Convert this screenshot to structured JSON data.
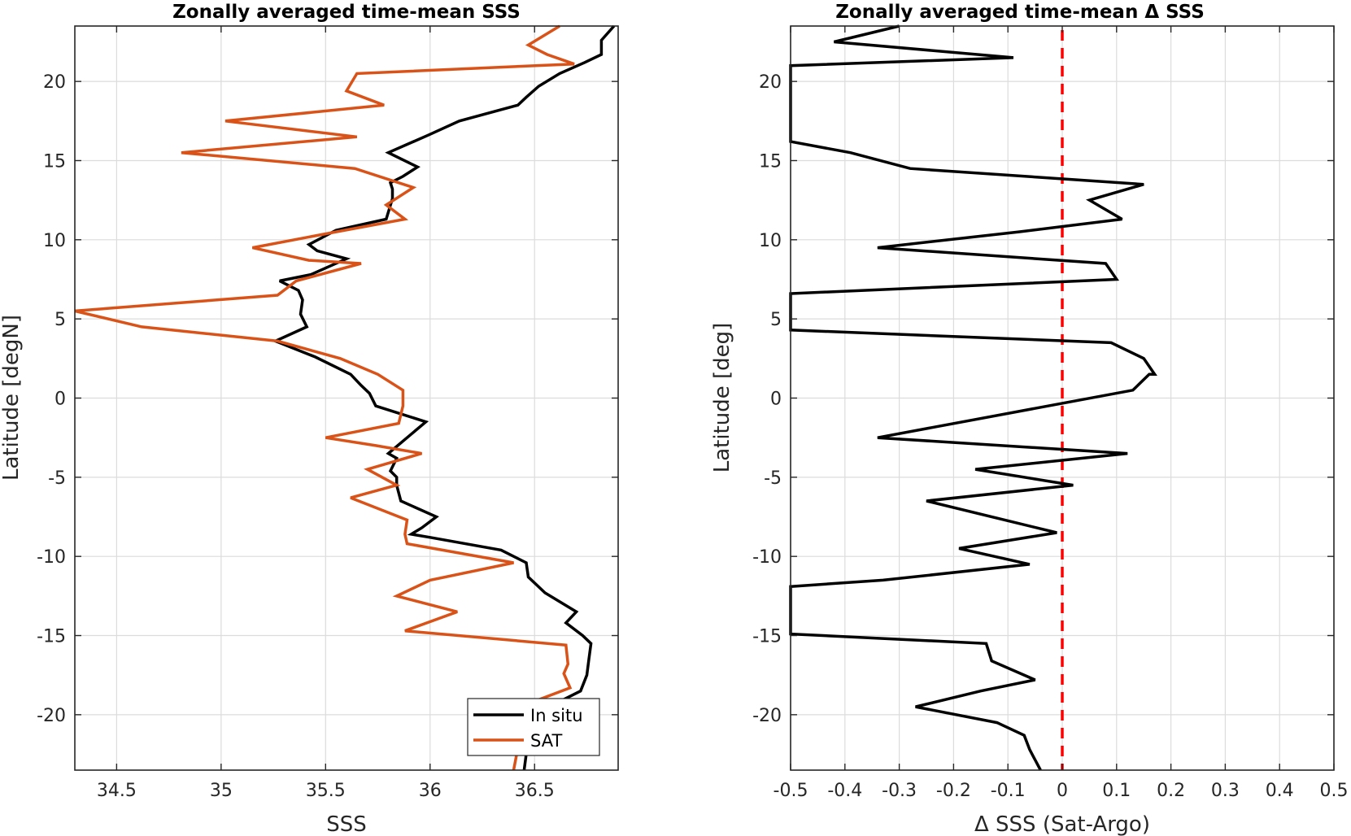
{
  "chart_data": [
    {
      "type": "line",
      "title": "Zonally averaged time-mean SSS",
      "xlabel": "SSS",
      "ylabel": "Latitude [degN]",
      "xlim": [
        34.3,
        36.9
      ],
      "ylim": [
        -23.5,
        23.5
      ],
      "xticks": [
        34.5,
        35,
        35.5,
        36,
        36.5
      ],
      "xtick_labels": [
        "34.5",
        "35",
        "35.5",
        "36",
        "36.5"
      ],
      "yticks": [
        -20,
        -15,
        -10,
        -5,
        0,
        5,
        10,
        15,
        20
      ],
      "ytick_labels": [
        "-20",
        "-15",
        "-10",
        "-5",
        "0",
        "5",
        "10",
        "15",
        "20"
      ],
      "grid": true,
      "legend_position": "bottom-right",
      "series": [
        {
          "name": "In situ",
          "color": "#000000",
          "points": [
            [
              36.45,
              -23.5
            ],
            [
              36.47,
              -21.5
            ],
            [
              36.45,
              -20.8
            ],
            [
              36.57,
              -19.5
            ],
            [
              36.72,
              -18.5
            ],
            [
              36.75,
              -17.5
            ],
            [
              36.76,
              -16.5
            ],
            [
              36.77,
              -15.5
            ],
            [
              36.73,
              -15
            ],
            [
              36.65,
              -14.2
            ],
            [
              36.7,
              -13.5
            ],
            [
              36.55,
              -12.3
            ],
            [
              36.47,
              -11.3
            ],
            [
              36.46,
              -10.4
            ],
            [
              36.34,
              -9.6
            ],
            [
              36.0,
              -8.8
            ],
            [
              35.91,
              -8.6
            ],
            [
              35.96,
              -8.2
            ],
            [
              36.03,
              -7.5
            ],
            [
              35.86,
              -6.5
            ],
            [
              35.84,
              -5.5
            ],
            [
              35.84,
              -5.0
            ],
            [
              35.81,
              -4.6
            ],
            [
              35.84,
              -3.8
            ],
            [
              35.8,
              -3.5
            ],
            [
              35.98,
              -1.5
            ],
            [
              35.74,
              -0.5
            ],
            [
              35.71,
              0.3
            ],
            [
              35.67,
              0.8
            ],
            [
              35.62,
              1.5
            ],
            [
              35.45,
              2.6
            ],
            [
              35.26,
              3.6
            ],
            [
              35.41,
              4.5
            ],
            [
              35.38,
              5.3
            ],
            [
              35.39,
              6.2
            ],
            [
              35.37,
              6.8
            ],
            [
              35.28,
              7.4
            ],
            [
              35.43,
              7.8
            ],
            [
              35.6,
              8.8
            ],
            [
              35.46,
              9.3
            ],
            [
              35.42,
              9.7
            ],
            [
              35.55,
              10.6
            ],
            [
              35.79,
              11.3
            ],
            [
              35.82,
              12.6
            ],
            [
              35.82,
              13.2
            ],
            [
              35.81,
              13.6
            ],
            [
              35.87,
              14.0
            ],
            [
              35.94,
              14.6
            ],
            [
              35.8,
              15.5
            ],
            [
              35.99,
              16.6
            ],
            [
              36.14,
              17.5
            ],
            [
              36.42,
              18.5
            ],
            [
              36.46,
              19.0
            ],
            [
              36.52,
              19.7
            ],
            [
              36.62,
              20.5
            ],
            [
              36.74,
              21.2
            ],
            [
              36.82,
              21.7
            ],
            [
              36.82,
              22.6
            ],
            [
              36.88,
              23.5
            ]
          ]
        },
        {
          "name": "SAT",
          "color": "#D95319",
          "points": [
            [
              36.4,
              -23.5
            ],
            [
              36.42,
              -22.1
            ],
            [
              36.43,
              -20.8
            ],
            [
              36.47,
              -19.3
            ],
            [
              36.67,
              -18.3
            ],
            [
              36.64,
              -17.4
            ],
            [
              36.66,
              -16.8
            ],
            [
              36.65,
              -15.6
            ],
            [
              35.88,
              -14.7
            ],
            [
              36.13,
              -13.5
            ],
            [
              35.84,
              -12.5
            ],
            [
              36.0,
              -11.5
            ],
            [
              36.4,
              -10.4
            ],
            [
              35.89,
              -9.2
            ],
            [
              35.88,
              -8.6
            ],
            [
              35.89,
              -7.7
            ],
            [
              35.62,
              -6.3
            ],
            [
              35.84,
              -5.5
            ],
            [
              35.7,
              -4.5
            ],
            [
              35.96,
              -3.5
            ],
            [
              35.74,
              -3.0
            ],
            [
              35.5,
              -2.5
            ],
            [
              35.85,
              -1.6
            ],
            [
              35.87,
              -0.5
            ],
            [
              35.87,
              0.5
            ],
            [
              35.75,
              1.5
            ],
            [
              35.57,
              2.5
            ],
            [
              35.27,
              3.6
            ],
            [
              34.62,
              4.5
            ],
            [
              34.3,
              5.5
            ],
            [
              35.27,
              6.5
            ],
            [
              35.36,
              7.4
            ],
            [
              35.67,
              8.5
            ],
            [
              35.42,
              8.7
            ],
            [
              35.15,
              9.5
            ],
            [
              35.55,
              10.5
            ],
            [
              35.88,
              11.3
            ],
            [
              35.79,
              12.2
            ],
            [
              35.92,
              13.3
            ],
            [
              35.64,
              14.5
            ],
            [
              34.81,
              15.5
            ],
            [
              35.65,
              16.5
            ],
            [
              35.02,
              17.5
            ],
            [
              35.78,
              18.5
            ],
            [
              35.6,
              19.4
            ],
            [
              35.65,
              20.5
            ],
            [
              36.69,
              21.1
            ],
            [
              36.56,
              21.7
            ],
            [
              36.47,
              22.3
            ],
            [
              36.62,
              23.5
            ]
          ]
        }
      ]
    },
    {
      "type": "line",
      "title": "Zonally averaged time-mean Δ SSS",
      "xlabel": "Δ SSS (Sat-Argo)",
      "ylabel": "Latitude [deg]",
      "xlim": [
        -0.5,
        0.5
      ],
      "ylim": [
        -23.5,
        23.5
      ],
      "xticks": [
        -0.5,
        -0.4,
        -0.3,
        -0.2,
        -0.1,
        0,
        0.1,
        0.2,
        0.3,
        0.4,
        0.5
      ],
      "xtick_labels": [
        "-0.5",
        "-0.4",
        "-0.3",
        "-0.2",
        "-0.1",
        "0",
        "0.1",
        "0.2",
        "0.3",
        "0.4",
        "0.5"
      ],
      "yticks": [
        -20,
        -15,
        -10,
        -5,
        0,
        5,
        10,
        15,
        20
      ],
      "ytick_labels": [
        "-20",
        "-15",
        "-10",
        "-5",
        "0",
        "5",
        "10",
        "15",
        "20"
      ],
      "grid": true,
      "reference_line": {
        "x": 0,
        "color": "#FF0000",
        "style": "dashed"
      },
      "series": [
        {
          "color": "#000000",
          "points": [
            [
              -0.04,
              -23.5
            ],
            [
              -0.06,
              -22.2
            ],
            [
              -0.07,
              -21.3
            ],
            [
              -0.12,
              -20.5
            ],
            [
              -0.27,
              -19.5
            ],
            [
              -0.15,
              -18.5
            ],
            [
              -0.05,
              -17.8
            ],
            [
              -0.13,
              -16.6
            ],
            [
              -0.14,
              -15.5
            ],
            [
              -0.5,
              -14.9
            ],
            [
              -0.5,
              -11.9
            ],
            [
              -0.33,
              -11.5
            ],
            [
              -0.06,
              -10.5
            ],
            [
              -0.19,
              -9.5
            ],
            [
              -0.01,
              -8.5
            ],
            [
              -0.25,
              -6.5
            ],
            [
              0.02,
              -5.5
            ],
            [
              -0.16,
              -4.5
            ],
            [
              0.12,
              -3.5
            ],
            [
              -0.34,
              -2.5
            ],
            [
              0.13,
              0.5
            ],
            [
              0.16,
              1.5
            ],
            [
              0.17,
              1.5
            ],
            [
              0.15,
              2.5
            ],
            [
              0.09,
              3.5
            ],
            [
              -0.5,
              4.3
            ],
            [
              -0.5,
              6.6
            ],
            [
              0.1,
              7.5
            ],
            [
              0.08,
              8.5
            ],
            [
              -0.34,
              9.5
            ],
            [
              -0.08,
              10.5
            ],
            [
              0.11,
              11.3
            ],
            [
              0.05,
              12.5
            ],
            [
              0.15,
              13.5
            ],
            [
              -0.28,
              14.5
            ],
            [
              -0.39,
              15.5
            ],
            [
              -0.5,
              16.2
            ],
            [
              -0.5,
              21.0
            ],
            [
              -0.09,
              21.5
            ],
            [
              -0.42,
              22.5
            ],
            [
              -0.3,
              23.5
            ]
          ]
        }
      ]
    }
  ],
  "legend": {
    "entries": [
      {
        "label": "In situ",
        "color": "#000000"
      },
      {
        "label": "SAT",
        "color": "#D95319"
      }
    ]
  }
}
